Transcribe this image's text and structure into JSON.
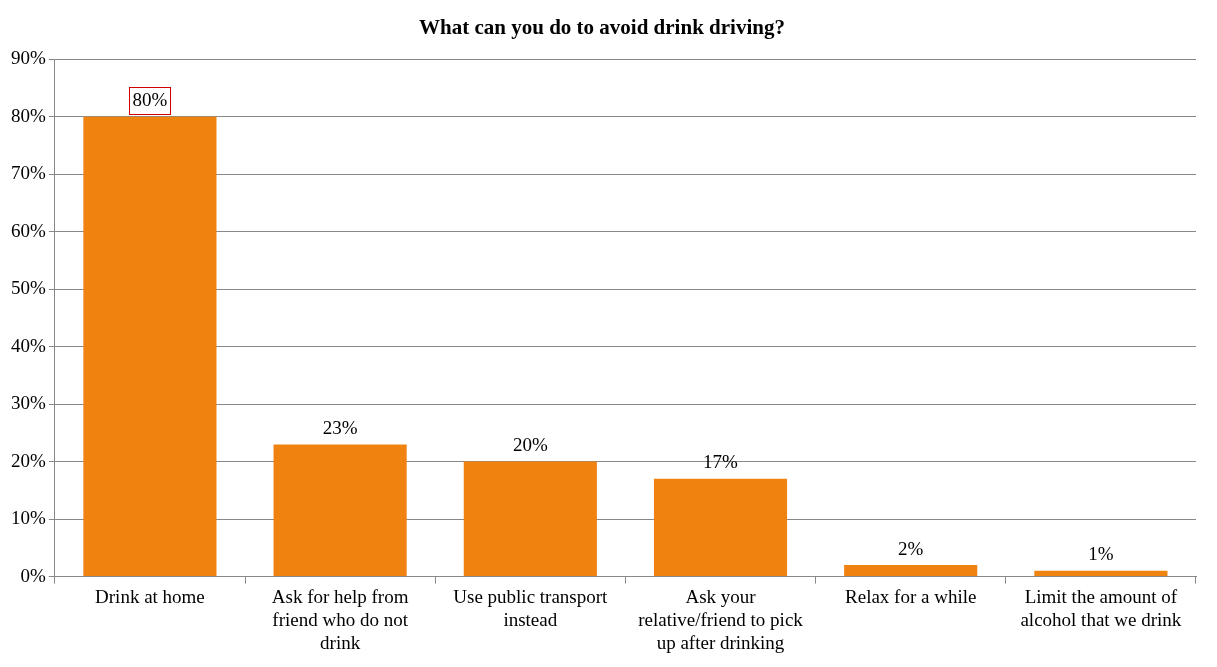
{
  "chart_data": {
    "type": "bar",
    "title": "What can you do to avoid drink driving?",
    "categories": [
      "Drink at home",
      "Ask for help from friend who do not drink",
      "Use public transport instead",
      "Ask your relative/friend to pick up after drinking",
      "Relax for a while",
      "Limit the amount of alcohol that we drink"
    ],
    "values": [
      80,
      23,
      20,
      17,
      2,
      1
    ],
    "color": "#f0820f",
    "ylim": [
      0,
      90
    ],
    "yticks": [
      {
        "value": 0,
        "label": "0%"
      },
      {
        "value": 10,
        "label": "10%"
      },
      {
        "value": 20,
        "label": "20%"
      },
      {
        "value": 30,
        "label": "30%"
      },
      {
        "value": 40,
        "label": "40%"
      },
      {
        "value": 50,
        "label": "50%"
      },
      {
        "value": 60,
        "label": "60%"
      },
      {
        "value": 70,
        "label": "70%"
      },
      {
        "value": 80,
        "label": "80%"
      },
      {
        "value": 90,
        "label": "90%"
      }
    ],
    "value_labels": [
      "80%",
      "23%",
      "20%",
      "17%",
      "2%",
      "1%"
    ],
    "grid": "y",
    "legend": false
  }
}
